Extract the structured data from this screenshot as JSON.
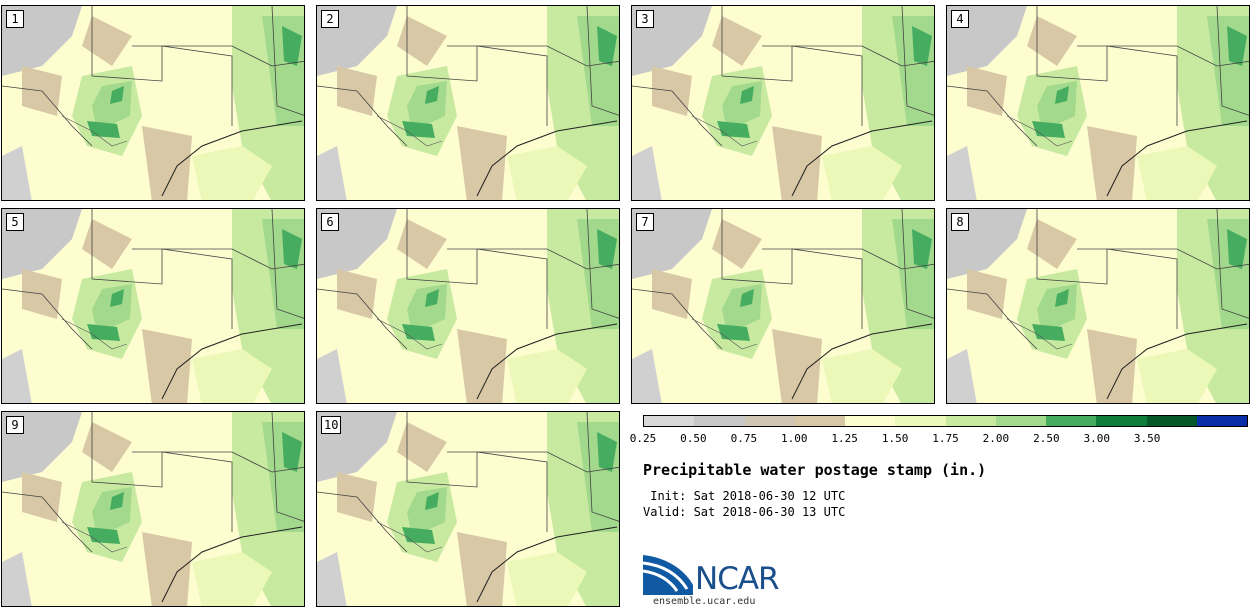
{
  "panels": [
    {
      "label": "1"
    },
    {
      "label": "2"
    },
    {
      "label": "3"
    },
    {
      "label": "4"
    },
    {
      "label": "5"
    },
    {
      "label": "6"
    },
    {
      "label": "7"
    },
    {
      "label": "8"
    },
    {
      "label": "9"
    },
    {
      "label": "10"
    }
  ],
  "legend": {
    "ticks": [
      "0.25",
      "0.50",
      "0.75",
      "1.00",
      "1.25",
      "1.50",
      "1.75",
      "2.00",
      "2.50",
      "3.00",
      "3.50"
    ],
    "colors": [
      "#d9d9d9",
      "#c8c8c8",
      "#cfc6b4",
      "#d8c8a6",
      "#fdfdd0",
      "#ecf8b8",
      "#c8eaa0",
      "#a3d98c",
      "#46ad60",
      "#107c3a",
      "#05582a",
      "#0a2da8"
    ]
  },
  "title": "Precipitable water postage stamp (in.)",
  "init": " Init: Sat 2018-06-30 12 UTC",
  "valid": "Valid: Sat 2018-06-30 13 UTC",
  "logo_text": "NCAR",
  "url": "ensemble.ucar.edu"
}
